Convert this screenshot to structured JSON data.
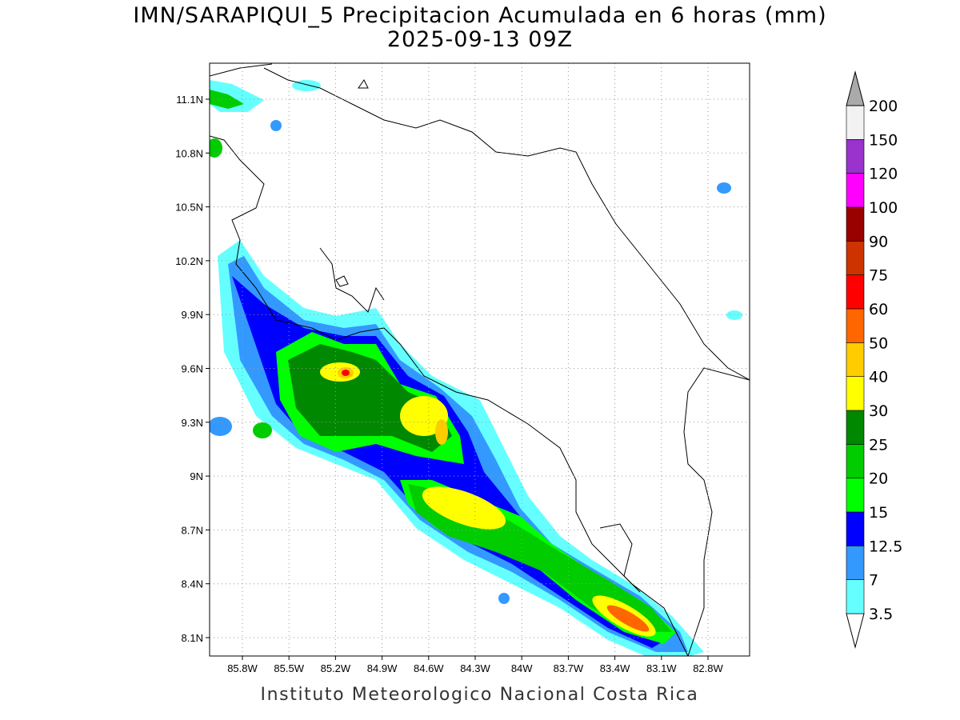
{
  "title": {
    "line1": "IMN/SARAPIQUI_5 Precipitacion Acumulada en 6 horas (mm)",
    "line2": "2025-09-13 09Z"
  },
  "footer": "Instituto Meteorologico Nacional Costa Rica",
  "axes": {
    "lon_ticks": [
      "85.8W",
      "85.5W",
      "85.2W",
      "84.9W",
      "84.6W",
      "84.3W",
      "84W",
      "83.7W",
      "83.4W",
      "83.1W",
      "82.8W"
    ],
    "lat_ticks": [
      "11.1N",
      "10.8N",
      "10.5N",
      "10.2N",
      "9.9N",
      "9.6N",
      "9.3N",
      "9N",
      "8.7N",
      "8.4N",
      "8.1N"
    ],
    "grid": true
  },
  "colorbar": {
    "levels": [
      "3.5",
      "7",
      "12.5",
      "15",
      "20",
      "25",
      "30",
      "40",
      "50",
      "60",
      "75",
      "90",
      "100",
      "120",
      "150",
      "200"
    ],
    "colors": [
      "#ffffff",
      "#66ffff",
      "#3399ff",
      "#0000ff",
      "#00ff00",
      "#00cc00",
      "#008800",
      "#ffff00",
      "#ffcc00",
      "#ff6600",
      "#ff0000",
      "#cc3300",
      "#990000",
      "#ff00ff",
      "#9933cc",
      "#f2f2f2",
      "#aaaaaa"
    ]
  }
}
